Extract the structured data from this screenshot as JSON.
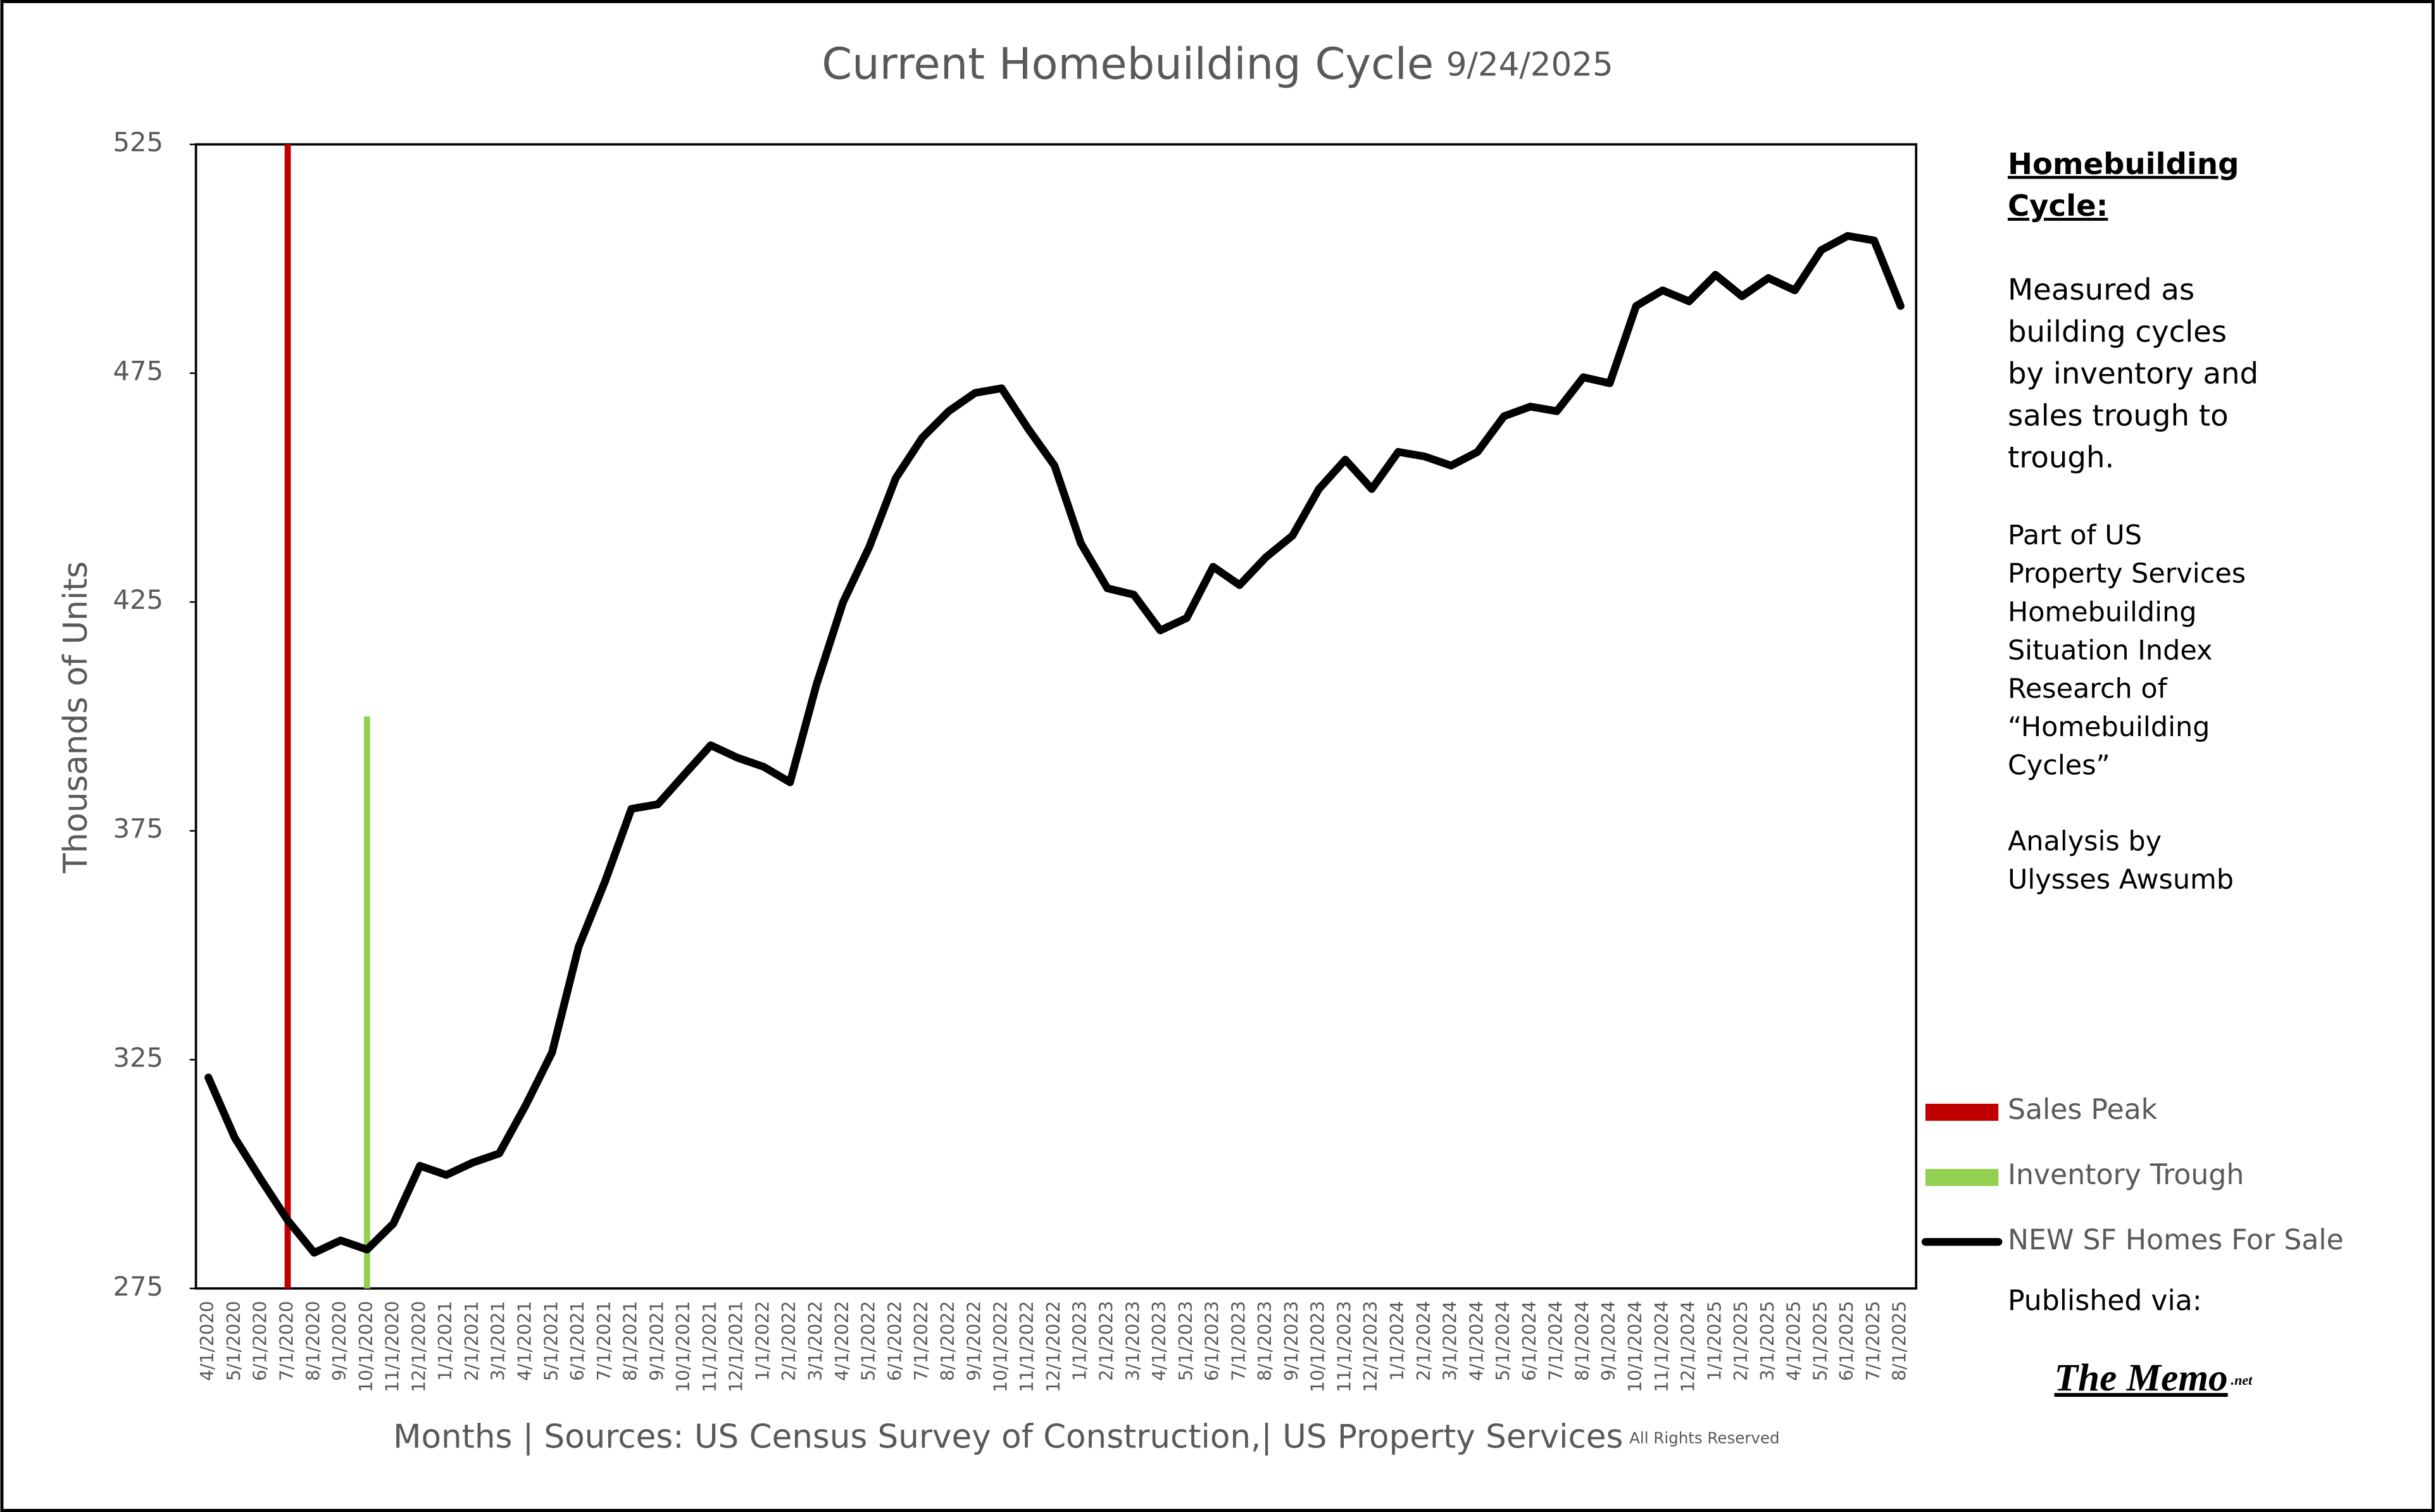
{
  "chart_data": {
    "type": "line",
    "title": "Current Homebuilding Cycle",
    "title_date": "9/24/2025",
    "y_label": "Thousands of Units",
    "x_label": "Months | Sources: US Census Survey of Construction,| US Property Services",
    "x_label_note": "All Rights Reserved",
    "categories": [
      "4/1/2020",
      "5/1/2020",
      "6/1/2020",
      "7/1/2020",
      "8/1/2020",
      "9/1/2020",
      "10/1/2020",
      "11/1/2020",
      "12/1/2020",
      "1/1/2021",
      "2/1/2021",
      "3/1/2021",
      "4/1/2021",
      "5/1/2021",
      "6/1/2021",
      "7/1/2021",
      "8/1/2021",
      "9/1/2021",
      "10/1/2021",
      "11/1/2021",
      "12/1/2021",
      "1/1/2022",
      "2/1/2022",
      "3/1/2022",
      "4/1/2022",
      "5/1/2022",
      "6/1/2022",
      "7/1/2022",
      "8/1/2022",
      "9/1/2022",
      "10/1/2022",
      "11/1/2022",
      "12/1/2022",
      "1/1/2023",
      "2/1/2023",
      "3/1/2023",
      "4/1/2023",
      "5/1/2023",
      "6/1/2023",
      "7/1/2023",
      "8/1/2023",
      "9/1/2023",
      "10/1/2023",
      "11/1/2023",
      "12/1/2023",
      "1/1/2024",
      "2/1/2024",
      "3/1/2024",
      "4/1/2024",
      "5/1/2024",
      "6/1/2024",
      "7/1/2024",
      "8/1/2024",
      "9/1/2024",
      "10/1/2024",
      "11/1/2024",
      "12/1/2024",
      "1/1/2025",
      "2/1/2025",
      "3/1/2025",
      "4/1/2025",
      "5/1/2025",
      "6/1/2025",
      "7/1/2025",
      "8/1/2025"
    ],
    "series": [
      {
        "name": "NEW SF Homes For Sale",
        "color": "#000000",
        "values": [
          321.1,
          307.9,
          298.7,
          289.9,
          282.8,
          285.5,
          283.5,
          289.2,
          301.8,
          299.8,
          302.5,
          304.5,
          315.0,
          326.6,
          349.6,
          363.9,
          379.8,
          380.8,
          387.3,
          393.7,
          391.0,
          389.0,
          385.6,
          407.0,
          424.9,
          437.1,
          452.1,
          460.9,
          466.7,
          470.7,
          471.7,
          462.9,
          454.8,
          437.8,
          428.0,
          426.6,
          418.8,
          421.5,
          432.7,
          428.7,
          434.8,
          439.5,
          449.7,
          456.1,
          449.7,
          457.8,
          456.8,
          454.8,
          457.8,
          465.6,
          467.7,
          466.7,
          474.1,
          472.8,
          489.7,
          493.1,
          490.7,
          496.5,
          491.8,
          495.8,
          493.1,
          501.9,
          505.0,
          504.0,
          489.7
        ]
      }
    ],
    "events": [
      {
        "name": "Sales Peak",
        "color": "#c00000",
        "x": "7/1/2020",
        "value": 525
      },
      {
        "name": "Inventory Trough",
        "color": "#92d050",
        "x": "10/1/2020",
        "value": 400
      }
    ],
    "ylim": [
      275,
      525
    ],
    "yticks": [
      275,
      325,
      375,
      425,
      475,
      525
    ],
    "grid": false
  },
  "sidebar": {
    "heading": [
      "Homebuilding",
      "Cycle:"
    ],
    "paragraphs": [
      [
        "Measured as",
        "building cycles",
        "by inventory and",
        "sales trough to",
        "trough."
      ],
      [
        "Part of US",
        "Property Services",
        "Homebuilding",
        "Situation Index",
        "Research of",
        "“Homebuilding",
        "Cycles”"
      ],
      [
        "Analysis by",
        "Ulysses Awsumb"
      ]
    ],
    "published_via": "Published via:",
    "publisher": "The Memo",
    "publisher_suffix": ".net"
  }
}
